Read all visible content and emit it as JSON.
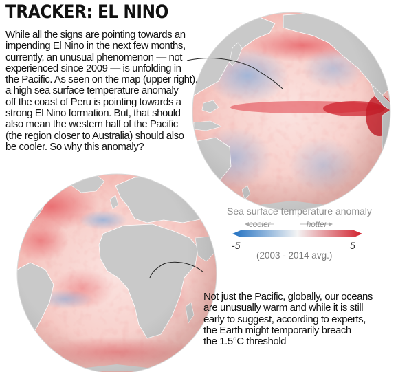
{
  "title": "TRACKER: EL NINO",
  "intro_lines": [
    "While all the signs are pointing towards an",
    "impending El Nino in the next few months,",
    "currently, an unusual phenomenon — not",
    "experienced since 2009 — is unfolding in",
    "the Pacific. As seen on the map (upper right),",
    "a high sea surface temperature anomaly",
    "off the coast of Peru is pointing towards a",
    "strong El Nino formation. But, that should",
    "also mean the western half of the Pacific",
    "(the region closer to Australia) should also",
    "be cooler. So why this anomaly?"
  ],
  "outro_lines": [
    "Not just the Pacific, globally, our oceans",
    "are unusually warm and while it is still",
    "early to suggest, according to experts,",
    "the Earth might temporarily breach",
    "the 1.5°C threshold"
  ],
  "legend": {
    "title": "Sea surface temperature anomaly",
    "cooler_label": "cooler",
    "hotter_label": "hotter",
    "min": "-5",
    "max": "5",
    "baseline": "(2003 - 2014 avg.)",
    "cool_color": "#1f6fc1",
    "neutral_color": "#f4f4f4",
    "hot_color": "#d1202c"
  },
  "map": {
    "globes": [
      "pacific-globe",
      "atlantic-africa-globe"
    ],
    "land_color": "#c9c9c9",
    "border_color": "#ffffff",
    "ocean_warm_color": "#f2a6a0",
    "ocean_cool_color": "#a9c6e6"
  }
}
